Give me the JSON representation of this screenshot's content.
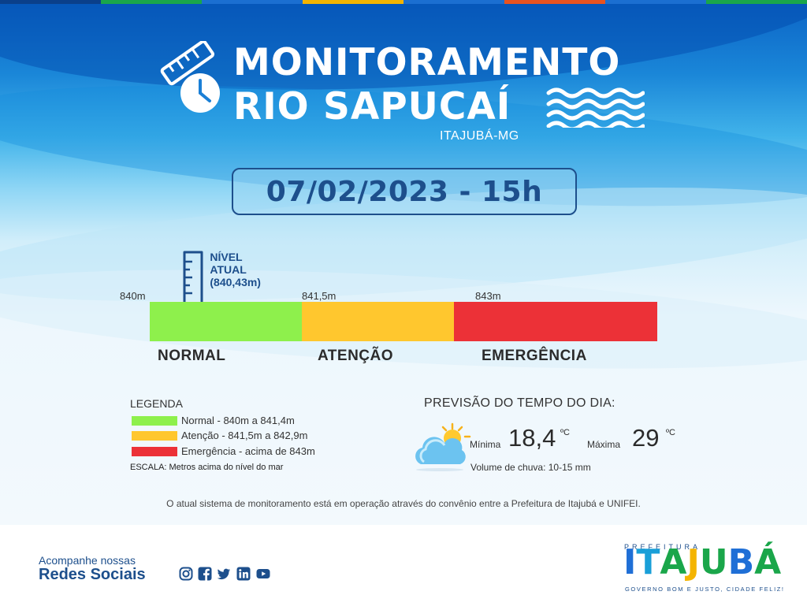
{
  "header": {
    "title_line1": "MONITORAMENTO",
    "title_line2": "RIO SAPUCAÍ",
    "location": "ITAJUBÁ-MG",
    "datetime": "07/02/2023 - 15h",
    "top_bar_colors": [
      "#0a3f8a",
      "#1aa64a",
      "#1b6fd1",
      "#f4b400",
      "#1b6fd1",
      "#e8531f",
      "#1b6fd1",
      "#1aa64a"
    ]
  },
  "level": {
    "current_label_line1": "NÍVEL",
    "current_label_line2": "ATUAL",
    "current_label_line3": "(840,43m)",
    "current_value": 840.43,
    "scale_min": 840,
    "scale_max": 845,
    "ticks": [
      "840m",
      "841,5m",
      "843m"
    ],
    "zones": [
      {
        "name": "NORMAL",
        "color": "#8ef04c"
      },
      {
        "name": "ATENÇÃO",
        "color": "#ffc72e"
      },
      {
        "name": "EMERGÊNCIA",
        "color": "#ec3137"
      }
    ]
  },
  "legend": {
    "title": "LEGENDA",
    "items": [
      {
        "text": "Normal - 840m a 841,4m",
        "color": "#8ef04c"
      },
      {
        "text": "Atenção - 841,5m a 842,9m",
        "color": "#ffc72e"
      },
      {
        "text": "Emergência - acima de 843m",
        "color": "#ec3137"
      }
    ],
    "scale_note": "ESCALA: Metros acima do nível do mar"
  },
  "forecast": {
    "title": "PREVISÃO DO TEMPO DO DIA:",
    "icon": "partly-cloudy-icon",
    "min_label": "Mínima",
    "min_value": "18,4",
    "max_label": "Máxima",
    "max_value": "29",
    "unit": "ºC",
    "rain": "Volume de chuva: 10-15 mm"
  },
  "footnote": "O atual sistema de monitoramento está em operação através do convênio entre a Prefeitura de Itajubá e UNIFEI.",
  "footer": {
    "social_line1": "Acompanhe nossas",
    "social_line2": "Redes Sociais",
    "social_icons": [
      "instagram-icon",
      "facebook-icon",
      "twitter-icon",
      "linkedin-icon",
      "youtube-icon"
    ],
    "logo_prefix": "PREFEITURA",
    "logo_letters": [
      {
        "char": "I",
        "color": "#1f6fd6"
      },
      {
        "char": "T",
        "color": "#1a9fd8"
      },
      {
        "char": "A",
        "color": "#1aa64a"
      },
      {
        "char": "J",
        "color": "#f4b400"
      },
      {
        "char": "U",
        "color": "#1aa64a"
      },
      {
        "char": "B",
        "color": "#1f6fd6"
      },
      {
        "char": "Á",
        "color": "#1aa64a"
      }
    ],
    "logo_tagline": "GOVERNO BOM E JUSTO, CIDADE FELIZ!"
  }
}
